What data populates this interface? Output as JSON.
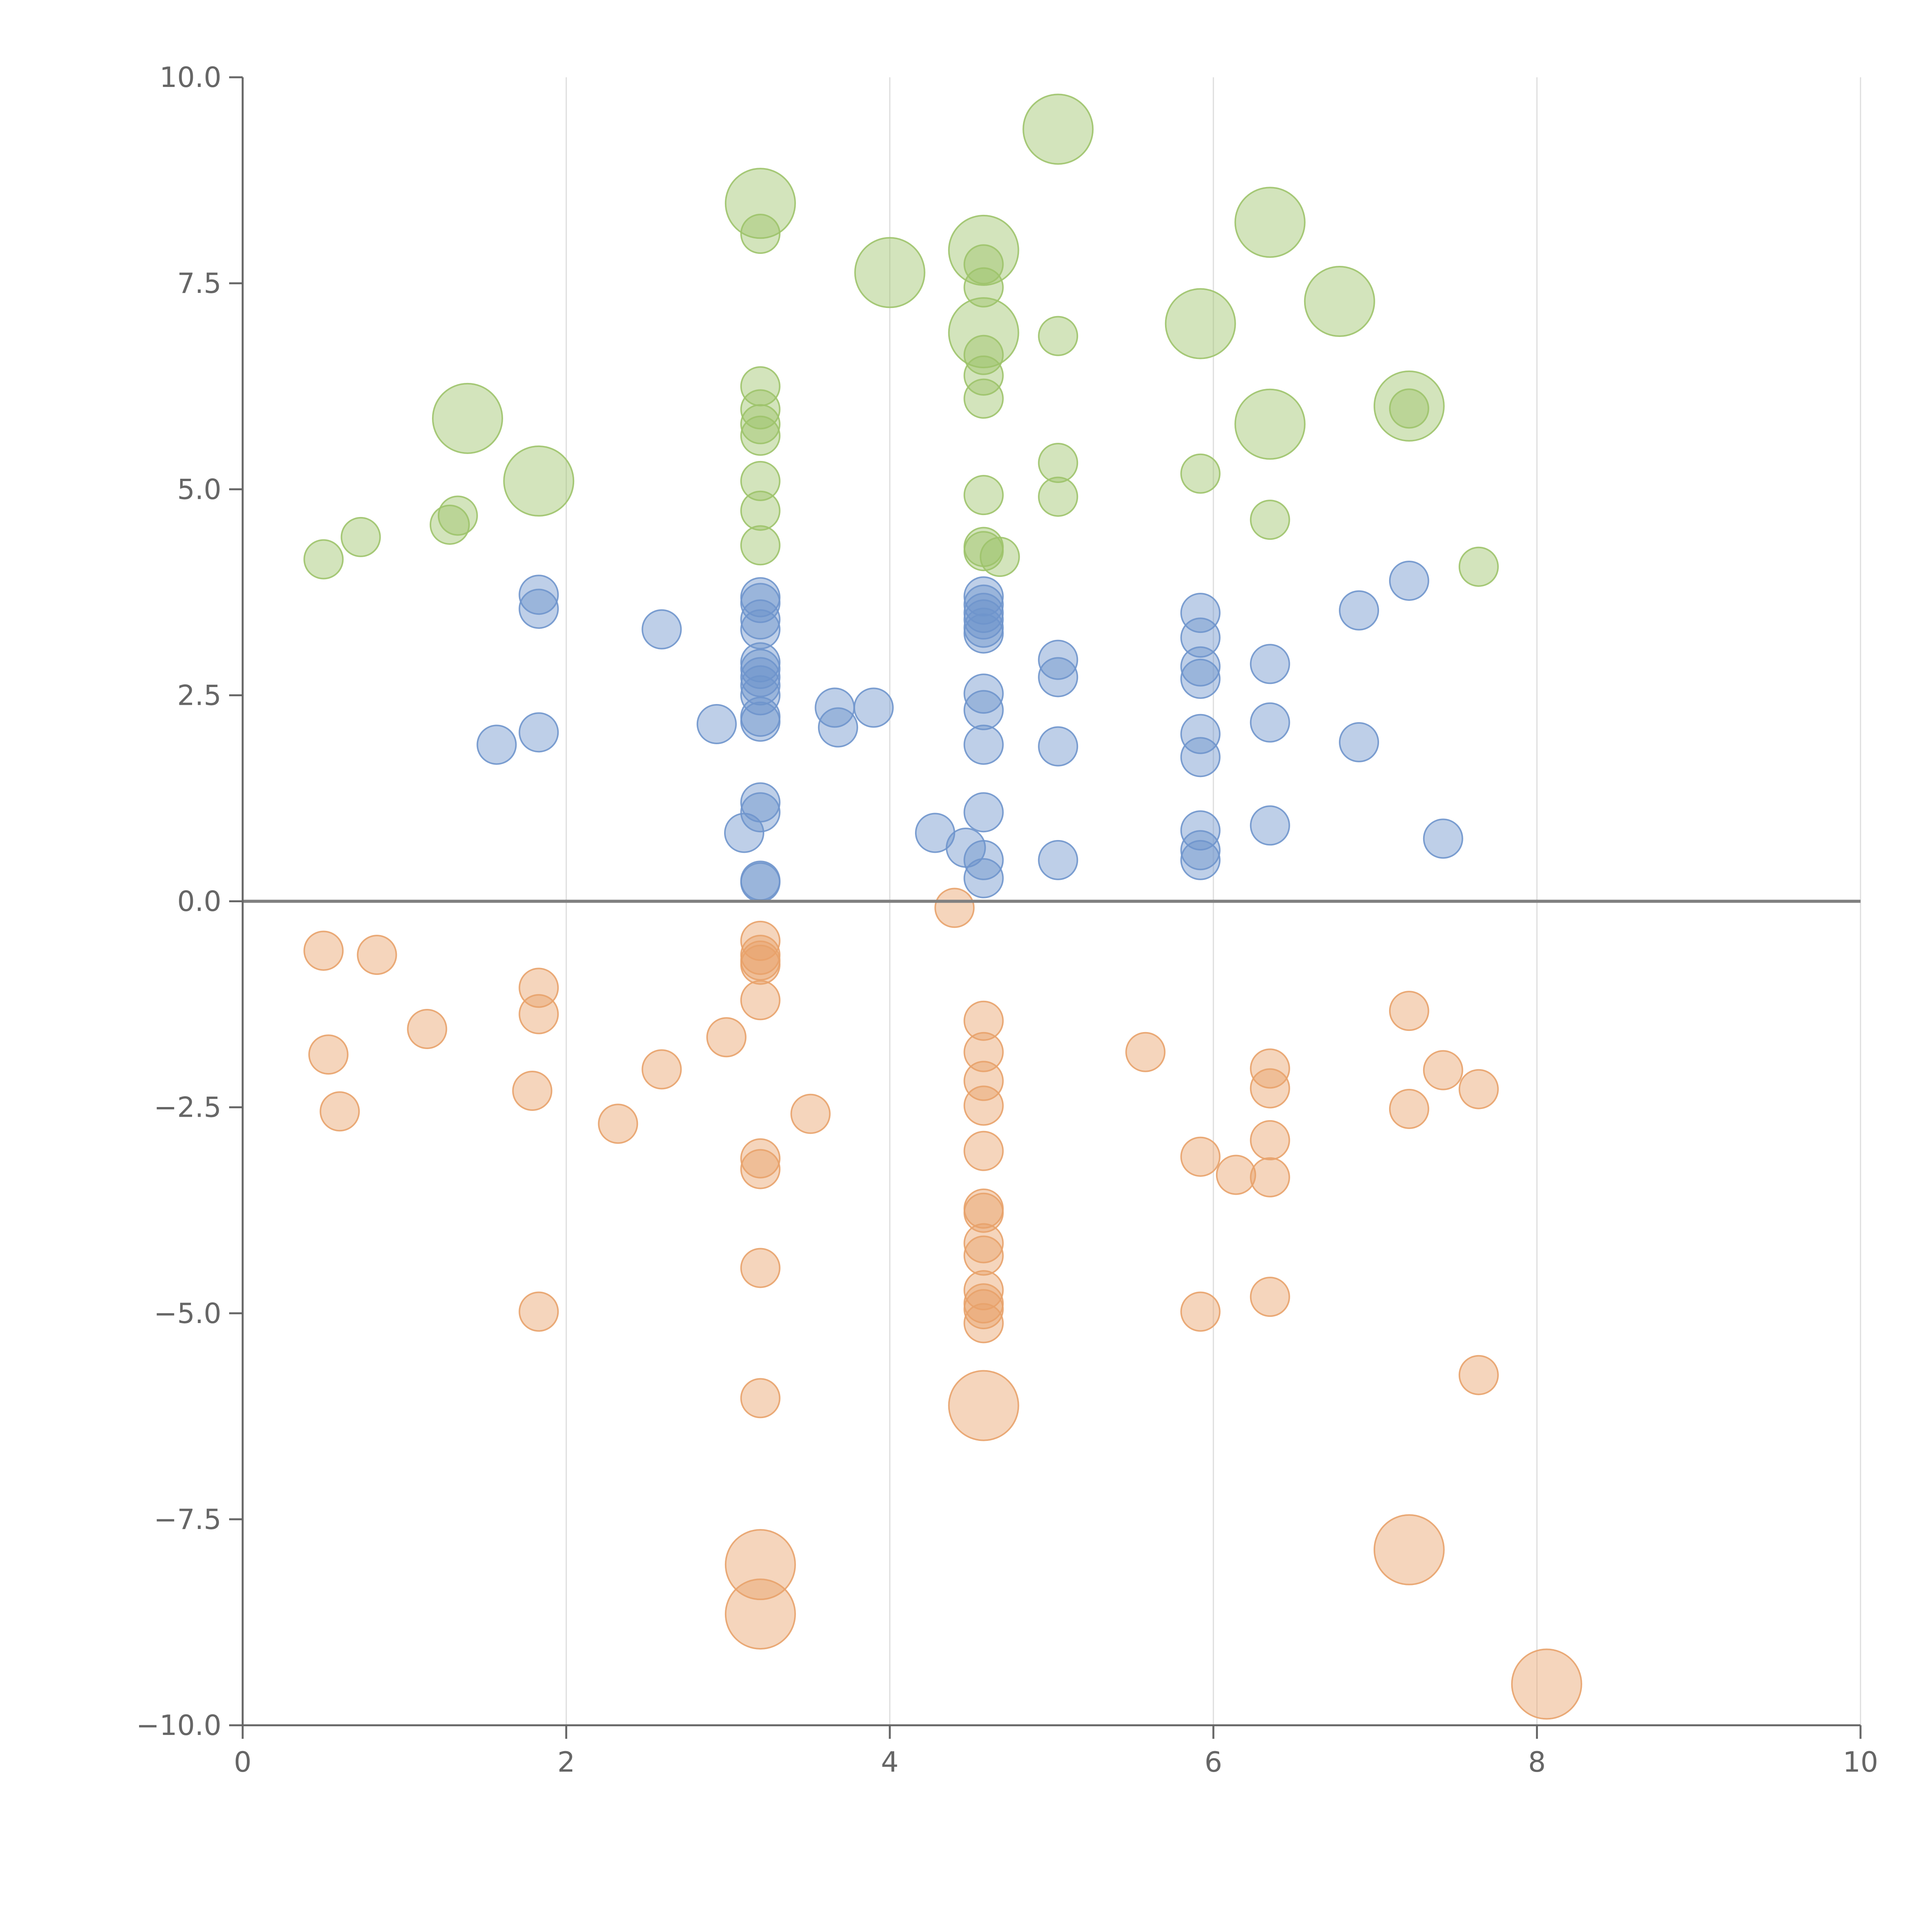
{
  "chart_data": {
    "type": "scatter",
    "title": "",
    "xlabel": "",
    "ylabel": "",
    "xlim": [
      0,
      10
    ],
    "ylim": [
      -10,
      10
    ],
    "x_ticks": [
      "0",
      "2",
      "4",
      "6",
      "8",
      "10"
    ],
    "x_tick_values": [
      0,
      2,
      4,
      6,
      8,
      10
    ],
    "y_ticks": [
      "10.0",
      "7.5",
      "5.0",
      "2.5",
      "0.0",
      "−2.5",
      "−5.0",
      "−7.5",
      "−10.0"
    ],
    "y_tick_values": [
      10,
      7.5,
      5,
      2.5,
      0,
      -2.5,
      -5,
      -7.5,
      -10
    ],
    "grid": "vertical",
    "legend": "none",
    "series": [
      {
        "name": "green",
        "color": "#9dc36a",
        "points": [
          [
            0.5,
            4.15,
            1
          ],
          [
            0.73,
            4.42,
            1
          ],
          [
            1.28,
            4.57,
            1
          ],
          [
            1.33,
            4.68,
            1
          ],
          [
            1.39,
            5.86,
            3
          ],
          [
            1.83,
            5.1,
            3
          ],
          [
            3.2,
            8.47,
            3
          ],
          [
            3.2,
            8.1,
            1
          ],
          [
            3.2,
            6.25,
            1
          ],
          [
            3.2,
            5.97,
            1
          ],
          [
            3.2,
            5.79,
            1
          ],
          [
            3.2,
            5.65,
            1
          ],
          [
            3.2,
            5.1,
            1
          ],
          [
            3.2,
            4.74,
            1
          ],
          [
            3.2,
            4.32,
            1
          ],
          [
            4.0,
            7.63,
            3
          ],
          [
            4.58,
            7.9,
            3
          ],
          [
            4.58,
            7.73,
            1
          ],
          [
            4.58,
            7.45,
            1
          ],
          [
            4.58,
            6.9,
            3
          ],
          [
            4.58,
            6.63,
            1
          ],
          [
            4.58,
            6.38,
            1
          ],
          [
            4.58,
            6.1,
            1
          ],
          [
            4.58,
            4.93,
            1
          ],
          [
            4.58,
            4.3,
            1
          ],
          [
            4.58,
            4.25,
            1
          ],
          [
            4.68,
            4.18,
            1
          ],
          [
            5.04,
            9.37,
            3
          ],
          [
            5.04,
            6.86,
            1
          ],
          [
            5.04,
            5.32,
            1
          ],
          [
            5.04,
            4.91,
            1
          ],
          [
            5.92,
            7.01,
            3
          ],
          [
            5.92,
            5.19,
            1
          ],
          [
            6.35,
            8.24,
            3
          ],
          [
            6.35,
            5.79,
            3
          ],
          [
            6.35,
            4.63,
            1
          ],
          [
            6.78,
            7.28,
            3
          ],
          [
            7.21,
            6.01,
            3
          ],
          [
            7.21,
            5.98,
            1
          ],
          [
            7.64,
            4.06,
            1
          ]
        ]
      },
      {
        "name": "blue",
        "color": "#6f95cc",
        "points": [
          [
            1.57,
            1.9,
            1
          ],
          [
            1.83,
            3.72,
            1
          ],
          [
            1.83,
            3.55,
            1
          ],
          [
            1.83,
            2.05,
            1
          ],
          [
            2.59,
            3.3,
            1
          ],
          [
            2.93,
            2.15,
            1
          ],
          [
            3.1,
            0.83,
            1
          ],
          [
            3.2,
            3.69,
            1
          ],
          [
            3.2,
            3.62,
            1
          ],
          [
            3.2,
            3.42,
            1
          ],
          [
            3.2,
            3.3,
            1
          ],
          [
            3.2,
            2.9,
            1
          ],
          [
            3.2,
            2.82,
            1
          ],
          [
            3.2,
            2.72,
            1
          ],
          [
            3.2,
            2.62,
            1
          ],
          [
            3.2,
            2.5,
            1
          ],
          [
            3.2,
            2.24,
            1
          ],
          [
            3.2,
            2.18,
            1
          ],
          [
            3.2,
            1.2,
            1
          ],
          [
            3.2,
            1.08,
            1
          ],
          [
            3.2,
            0.25,
            1
          ],
          [
            3.2,
            0.23,
            1
          ],
          [
            3.66,
            2.35,
            1
          ],
          [
            3.68,
            2.11,
            1
          ],
          [
            3.9,
            2.35,
            1
          ],
          [
            4.28,
            0.83,
            1
          ],
          [
            4.47,
            0.65,
            1
          ],
          [
            4.58,
            3.7,
            1
          ],
          [
            4.58,
            3.6,
            1
          ],
          [
            4.58,
            3.5,
            1
          ],
          [
            4.58,
            3.42,
            1
          ],
          [
            4.58,
            3.32,
            1
          ],
          [
            4.58,
            3.25,
            1
          ],
          [
            4.58,
            2.52,
            1
          ],
          [
            4.58,
            2.32,
            1
          ],
          [
            4.58,
            1.9,
            1
          ],
          [
            4.58,
            1.08,
            1
          ],
          [
            4.58,
            0.5,
            1
          ],
          [
            4.58,
            0.28,
            1
          ],
          [
            5.04,
            2.93,
            1
          ],
          [
            5.04,
            2.72,
            1
          ],
          [
            5.04,
            1.88,
            1
          ],
          [
            5.04,
            0.5,
            1
          ],
          [
            5.92,
            3.5,
            1
          ],
          [
            5.92,
            3.2,
            1
          ],
          [
            5.92,
            2.85,
            1
          ],
          [
            5.92,
            2.7,
            1
          ],
          [
            5.92,
            2.03,
            1
          ],
          [
            5.92,
            1.75,
            1
          ],
          [
            5.92,
            0.86,
            1
          ],
          [
            5.92,
            0.62,
            1
          ],
          [
            5.92,
            0.5,
            1
          ],
          [
            6.35,
            2.88,
            1
          ],
          [
            6.35,
            2.17,
            1
          ],
          [
            6.35,
            0.92,
            1
          ],
          [
            6.9,
            3.53,
            1
          ],
          [
            6.9,
            1.93,
            1
          ],
          [
            7.21,
            3.89,
            1
          ],
          [
            7.42,
            0.76,
            1
          ]
        ]
      },
      {
        "name": "orange",
        "color": "#e8a26a",
        "points": [
          [
            0.5,
            -0.6,
            1
          ],
          [
            0.53,
            -1.86,
            1
          ],
          [
            0.6,
            -2.55,
            1
          ],
          [
            0.83,
            -0.65,
            1
          ],
          [
            1.14,
            -1.55,
            1
          ],
          [
            1.79,
            -2.3,
            1
          ],
          [
            1.83,
            -1.05,
            1
          ],
          [
            1.83,
            -1.37,
            1
          ],
          [
            1.83,
            -4.98,
            1
          ],
          [
            2.32,
            -2.7,
            1
          ],
          [
            2.59,
            -2.04,
            1
          ],
          [
            2.99,
            -1.65,
            1
          ],
          [
            3.2,
            -0.48,
            1
          ],
          [
            3.2,
            -0.65,
            1
          ],
          [
            3.2,
            -0.72,
            1
          ],
          [
            3.2,
            -0.77,
            1
          ],
          [
            3.2,
            -1.2,
            1
          ],
          [
            3.2,
            -3.12,
            1
          ],
          [
            3.2,
            -3.25,
            1
          ],
          [
            3.2,
            -4.45,
            1
          ],
          [
            3.2,
            -6.03,
            1
          ],
          [
            3.2,
            -8.05,
            3
          ],
          [
            3.2,
            -8.65,
            3
          ],
          [
            3.51,
            -2.58,
            1
          ],
          [
            4.4,
            -0.08,
            1
          ],
          [
            4.58,
            -1.45,
            1
          ],
          [
            4.58,
            -1.83,
            1
          ],
          [
            4.58,
            -2.18,
            1
          ],
          [
            4.58,
            -2.48,
            1
          ],
          [
            4.58,
            -3.03,
            1
          ],
          [
            4.58,
            -3.73,
            1
          ],
          [
            4.58,
            -3.78,
            1
          ],
          [
            4.58,
            -4.15,
            1
          ],
          [
            4.58,
            -4.3,
            1
          ],
          [
            4.58,
            -4.72,
            1
          ],
          [
            4.58,
            -4.88,
            1
          ],
          [
            4.58,
            -4.95,
            1
          ],
          [
            4.58,
            -5.12,
            1
          ],
          [
            4.58,
            -6.12,
            3
          ],
          [
            5.58,
            -1.83,
            1
          ],
          [
            5.92,
            -3.1,
            1
          ],
          [
            5.92,
            -4.98,
            1
          ],
          [
            6.14,
            -3.32,
            1
          ],
          [
            6.35,
            -2.03,
            1
          ],
          [
            6.35,
            -2.27,
            1
          ],
          [
            6.35,
            -2.9,
            1
          ],
          [
            6.35,
            -3.35,
            1
          ],
          [
            6.35,
            -4.8,
            1
          ],
          [
            7.21,
            -1.33,
            1
          ],
          [
            7.21,
            -2.52,
            1
          ],
          [
            7.21,
            -7.87,
            3
          ],
          [
            7.42,
            -2.05,
            1
          ],
          [
            7.64,
            -2.28,
            1
          ],
          [
            7.64,
            -5.75,
            1
          ],
          [
            8.06,
            -9.5,
            3
          ]
        ]
      }
    ]
  }
}
